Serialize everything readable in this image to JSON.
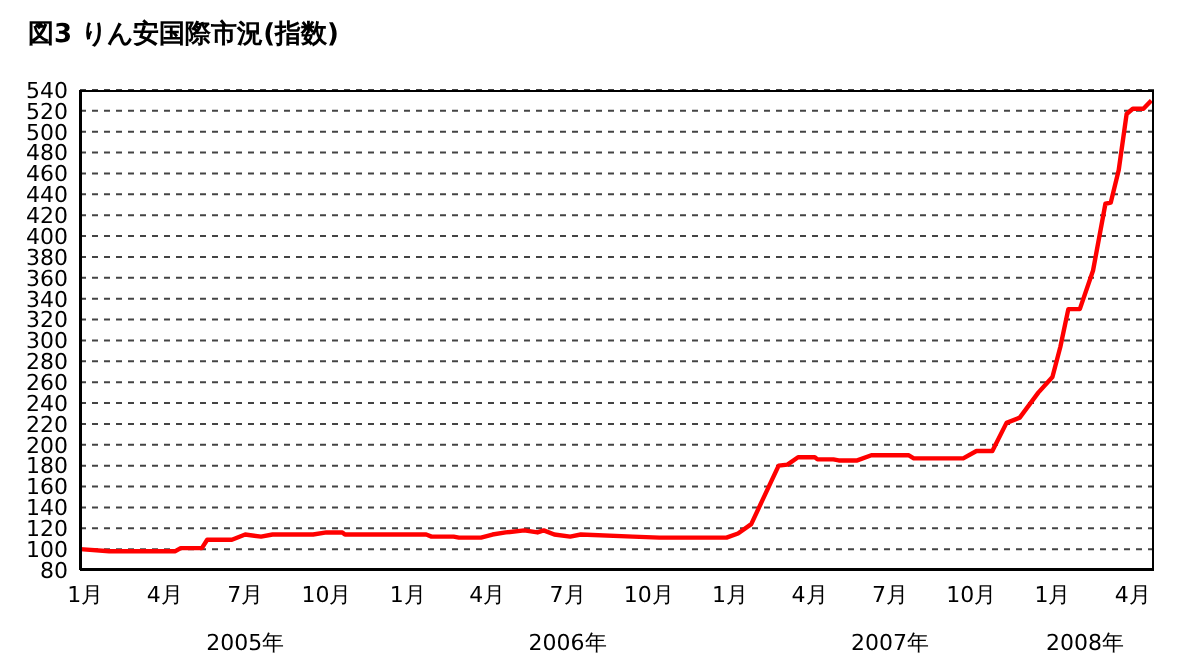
{
  "chart_data": {
    "type": "line",
    "title": "図3 りん安国際市況(指数)",
    "x": [
      "2004-12-26",
      "2005-01-28",
      "2005-04-13",
      "2005-04-19",
      "2005-05-13",
      "2005-05-19",
      "2005-06-16",
      "2005-07-01",
      "2005-07-19",
      "2005-08-01",
      "2005-09-16",
      "2005-10-01",
      "2005-10-19",
      "2005-10-22",
      "2006-01-22",
      "2006-01-28",
      "2006-02-22",
      "2006-02-28",
      "2006-03-25",
      "2006-04-07",
      "2006-04-22",
      "2006-05-13",
      "2006-05-28",
      "2006-06-04",
      "2006-06-16",
      "2006-07-04",
      "2006-07-16",
      "2006-09-13",
      "2006-10-13",
      "2006-12-28",
      "2007-01-10",
      "2007-01-25",
      "2007-02-25",
      "2007-03-07",
      "2007-03-19",
      "2007-04-07",
      "2007-04-10",
      "2007-04-28",
      "2007-05-04",
      "2007-05-25",
      "2007-06-10",
      "2007-07-22",
      "2007-07-28",
      "2007-08-10",
      "2007-09-22",
      "2007-10-07",
      "2007-10-25",
      "2007-11-10",
      "2007-11-25",
      "2007-12-16",
      "2008-01-01",
      "2008-01-10",
      "2008-01-19",
      "2008-02-01",
      "2008-02-16",
      "2008-03-01",
      "2008-03-07",
      "2008-03-16",
      "2008-03-25",
      "2008-04-01",
      "2008-04-13",
      "2008-04-22"
    ],
    "series": [
      {
        "color": "#ff0000",
        "values": [
          100,
          98,
          98,
          101,
          101,
          109,
          109,
          114,
          112,
          114,
          114,
          116,
          116,
          114,
          114,
          112,
          112,
          111,
          111,
          114,
          116,
          118,
          116,
          118,
          114,
          112,
          114,
          112,
          111,
          111,
          115,
          124,
          180,
          181,
          188,
          188,
          186,
          186,
          185,
          185,
          190,
          190,
          187,
          187,
          187,
          194,
          194,
          221,
          226,
          250,
          265,
          294,
          330,
          330,
          367,
          431,
          432,
          463,
          517,
          522,
          522,
          530
        ]
      }
    ],
    "xlim": [
      "2004-12-26",
      "2008-04-25"
    ],
    "xticks": [
      {
        "value": "2005-01",
        "label": "1月"
      },
      {
        "value": "2005-04",
        "label": "4月"
      },
      {
        "value": "2005-07",
        "label": "7月"
      },
      {
        "value": "2005-10",
        "label": "10月"
      },
      {
        "value": "2006-01",
        "label": "1月"
      },
      {
        "value": "2006-04",
        "label": "4月"
      },
      {
        "value": "2006-07",
        "label": "7月"
      },
      {
        "value": "2006-10",
        "label": "10月"
      },
      {
        "value": "2007-01",
        "label": "1月"
      },
      {
        "value": "2007-04",
        "label": "4月"
      },
      {
        "value": "2007-07",
        "label": "7月"
      },
      {
        "value": "2007-10",
        "label": "10月"
      },
      {
        "value": "2008-01",
        "label": "1月"
      },
      {
        "value": "2008-04",
        "label": "4月"
      }
    ],
    "x2lim": [
      "2004-12-26",
      "2008-04-25"
    ],
    "x2ticks": [
      {
        "value": "2005-07-01",
        "label": "2005年"
      },
      {
        "value": "2006-07-01",
        "label": "2006年"
      },
      {
        "value": "2007-07-01",
        "label": "2007年"
      },
      {
        "value": "2008-02-07",
        "label": "2008年"
      }
    ],
    "ylim": [
      80,
      540
    ],
    "yticks": [
      80,
      100,
      120,
      140,
      160,
      180,
      200,
      220,
      240,
      260,
      280,
      300,
      320,
      340,
      360,
      380,
      400,
      420,
      440,
      460,
      480,
      500,
      520,
      540
    ],
    "grid": "y",
    "legend": false,
    "marker": "none",
    "line_style": "solid"
  }
}
